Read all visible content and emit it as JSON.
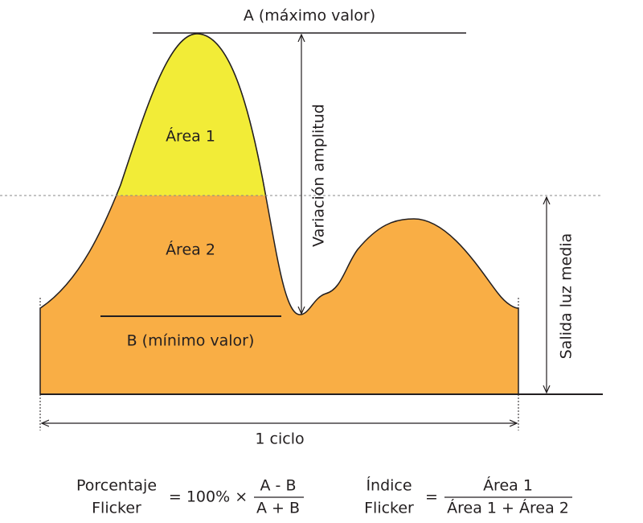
{
  "labels": {
    "max": "A (máximo valor)",
    "area1": "Área 1",
    "area2": "Área 2",
    "min": "B (mínimo valor)",
    "amplitude": "Variación amplitud",
    "average": "Salida luz media",
    "cycle": "1 ciclo"
  },
  "formulas": [
    {
      "name_lines": [
        "Porcentaje",
        "Flicker"
      ],
      "operator": "= 100% ×",
      "numerator": "A - B",
      "denominator": "A + B"
    },
    {
      "name_lines": [
        "Índice",
        "Flicker"
      ],
      "operator": "=",
      "numerator": "Área 1",
      "denominator": "Área 1 + Área 2"
    }
  ]
}
